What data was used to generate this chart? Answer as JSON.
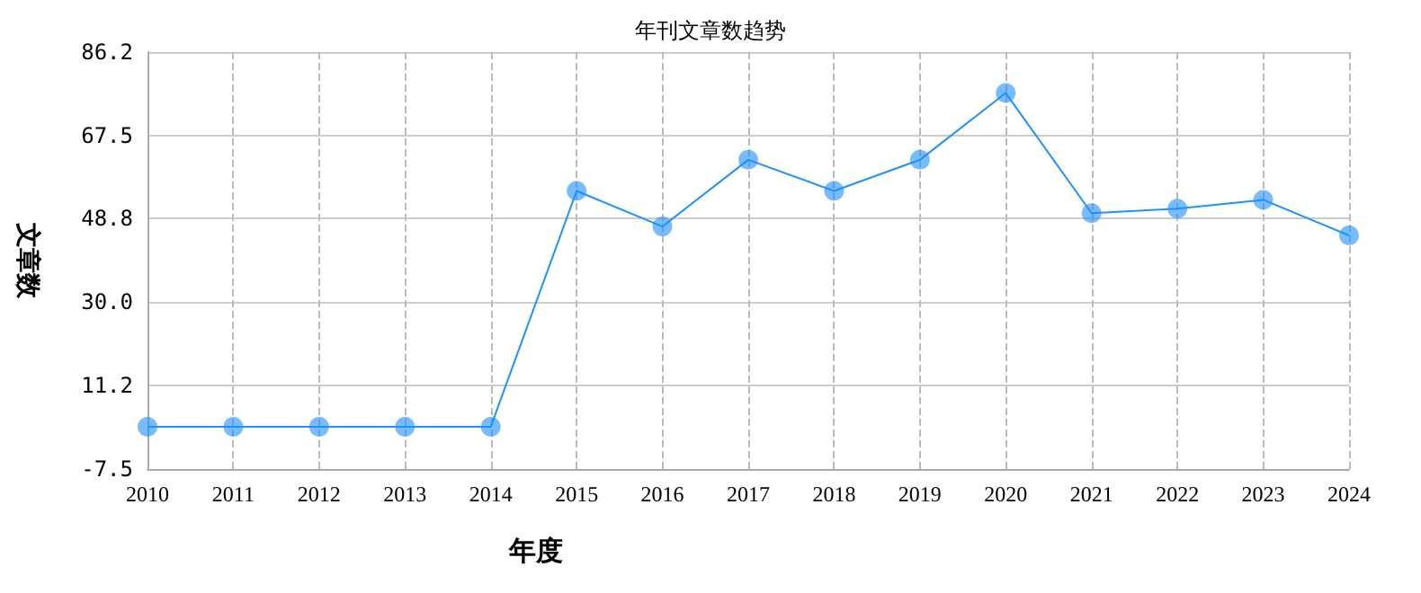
{
  "chart_data": {
    "type": "line",
    "title": "年刊文章数趋势",
    "xlabel": "年度",
    "ylabel": "文章数",
    "categories": [
      "2010",
      "2011",
      "2012",
      "2013",
      "2014",
      "2015",
      "2016",
      "2017",
      "2018",
      "2019",
      "2020",
      "2021",
      "2022",
      "2023",
      "2024"
    ],
    "series": [
      {
        "color": "#1e90ff",
        "values": [
          2,
          2,
          2,
          2,
          2,
          55,
          47,
          62,
          55,
          62,
          77,
          50,
          51,
          53,
          45
        ]
      }
    ],
    "ylim": [
      -7.5,
      86.2
    ],
    "yticks": [
      -7.5,
      11.2,
      {
        "value": 30,
        "label": "30.0"
      },
      48.8,
      67.5,
      86.2
    ],
    "grid": true,
    "marker": "circle",
    "line_style": "solid"
  }
}
